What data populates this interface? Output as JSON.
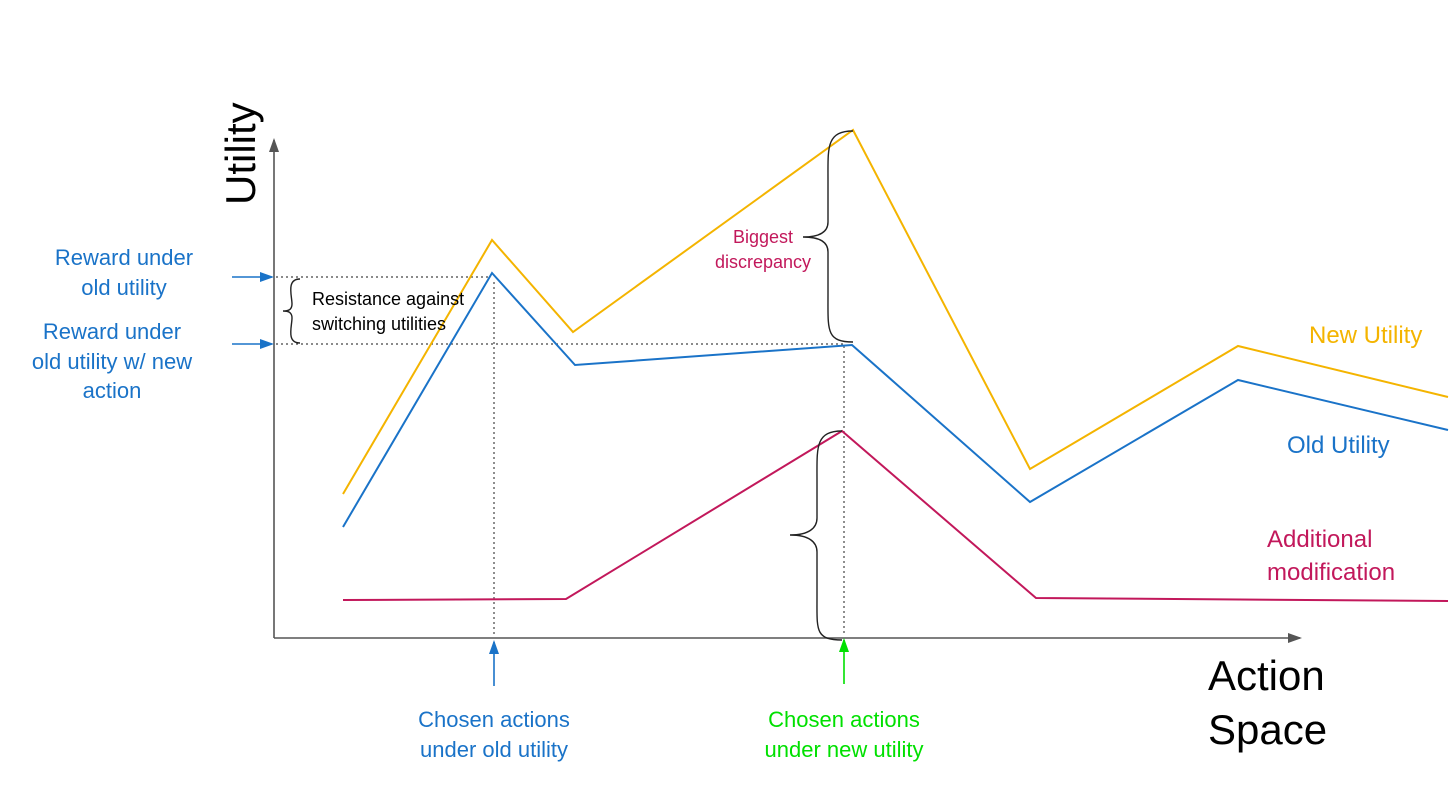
{
  "axes": {
    "y_label": "Utility",
    "x_label_line1": "Action",
    "x_label_line2": "Space"
  },
  "labels": {
    "reward_old_line1": "Reward under",
    "reward_old_line2": "old utility",
    "reward_new_line1": "Reward under",
    "reward_new_line2": "old utility w/ new",
    "reward_new_line3": "action",
    "resistance_line1": "Resistance against",
    "resistance_line2": "switching utilities",
    "biggest_line1": "Biggest",
    "biggest_line2": "discrepancy",
    "new_utility": "New Utility",
    "old_utility": "Old Utility",
    "additional_line1": "Additional",
    "additional_line2": "modification",
    "chosen_old_line1": "Chosen actions",
    "chosen_old_line2": "under old utility",
    "chosen_new_line1": "Chosen actions",
    "chosen_new_line2": "under new utility"
  },
  "colors": {
    "new_utility": "#f4b400",
    "old_utility": "#1a73c8",
    "additional": "#c2185b",
    "chosen_new": "#00e000",
    "axis": "#555555",
    "annotation": "#000000"
  }
}
